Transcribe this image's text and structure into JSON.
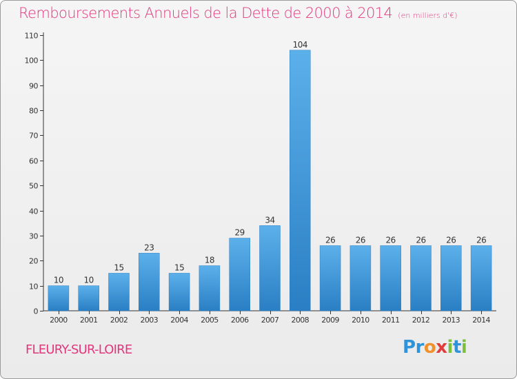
{
  "chart_data": {
    "type": "bar",
    "title": "Remboursements Annuels de la Dette de 2000 à 2014",
    "subtitle": "(en milliers d'€)",
    "categories": [
      "2000",
      "2001",
      "2002",
      "2003",
      "2004",
      "2005",
      "2006",
      "2007",
      "2008",
      "2009",
      "2010",
      "2011",
      "2012",
      "2013",
      "2014"
    ],
    "values": [
      10,
      10,
      15,
      23,
      15,
      18,
      29,
      34,
      104,
      26,
      26,
      26,
      26,
      26,
      26
    ],
    "ylim": [
      0,
      110
    ],
    "yticks": [
      0,
      10,
      20,
      30,
      40,
      50,
      60,
      70,
      80,
      90,
      100,
      110
    ],
    "grid": false,
    "data_labels": true,
    "bar_color": "#3f96dc",
    "bar_color_light": "#5cb0ea",
    "bar_color_dark": "#2a7fc4"
  },
  "footer": {
    "place": "FLEURY-SUR-LOIRE",
    "logo_letters": [
      "P",
      "r",
      "o",
      "x",
      "i",
      "t",
      "i"
    ],
    "logo_colors": [
      "#2f93d9",
      "#2f93d9",
      "#f0912b",
      "#e23b3b",
      "#7cbf3d",
      "#2f93d9",
      "#7cbf3d"
    ]
  },
  "colors": {
    "accent": "#e2377c",
    "axis": "#333333"
  }
}
